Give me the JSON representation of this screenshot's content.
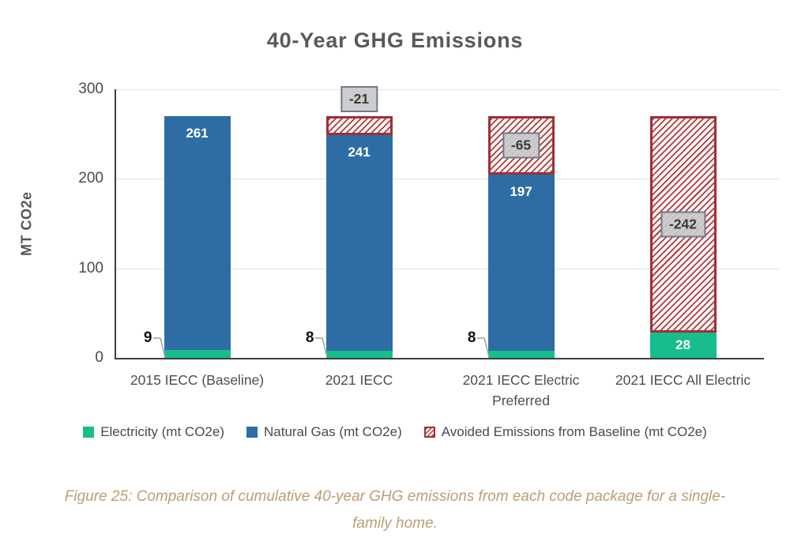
{
  "chart_data": {
    "type": "bar",
    "stacked": true,
    "title": "40-Year GHG Emissions",
    "ylabel": "MT CO2e",
    "ylim": [
      0,
      300
    ],
    "yticks": [
      0,
      100,
      200,
      300
    ],
    "grid": "horizontal",
    "legend_position": "bottom",
    "categories": [
      "2015 IECC (Baseline)",
      "2021 IECC",
      "2021 IECC Electric Preferred",
      "2021 IECC All Electric"
    ],
    "series": [
      {
        "key": "electricity",
        "name": "Electricity (mt CO2e)",
        "color": "#17bd8d",
        "values": [
          9,
          8,
          8,
          28
        ]
      },
      {
        "key": "natural_gas",
        "name": "Natural Gas (mt CO2e)",
        "color": "#2e6da4",
        "values": [
          261,
          241,
          197,
          0
        ]
      },
      {
        "key": "avoided",
        "name": "Avoided Emissions from Baseline (mt CO2e)",
        "stripe_color": "#b23b3c",
        "fill": "#fdf8f7",
        "border_color": "#a12f35",
        "values": [
          0,
          -21,
          -65,
          -242
        ]
      }
    ]
  },
  "caption": "Figure 25: Comparison of cumulative 40-year GHG emissions from each code package for a single-family home.",
  "colors": {
    "title_text": "#595959",
    "axis_line": "#3f3f3f",
    "gridline": "#e2e2e2",
    "tick_label": "#4a4a4a",
    "bar_value_text": "#ffffff",
    "outside_value_text": "#111111",
    "value_box_bg": "#c9c9c9",
    "value_box_border": "#6e7b8c",
    "callout_line": "#9f9f9f",
    "caption_text": "#bd9d74"
  }
}
